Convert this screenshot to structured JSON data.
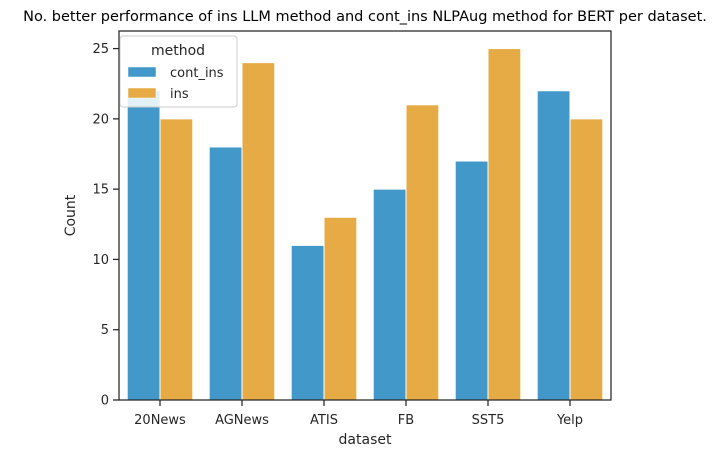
{
  "chart_data": {
    "type": "bar",
    "title": "No. better performance of ins LLM method and cont_ins NLPAug method for BERT per dataset.",
    "xlabel": "dataset",
    "ylabel": "Count",
    "categories": [
      "20News",
      "AGNews",
      "ATIS",
      "FB",
      "SST5",
      "Yelp"
    ],
    "ylim": [
      0,
      26.25
    ],
    "yticks": [
      0,
      5,
      10,
      15,
      20,
      25
    ],
    "grid": false,
    "legend": {
      "title": "method",
      "placement": "top-left"
    },
    "series": [
      {
        "name": "cont_ins",
        "color": "#4198c9",
        "values": [
          22,
          18,
          11,
          15,
          17,
          22
        ]
      },
      {
        "name": "ins",
        "color": "#e6ab45",
        "values": [
          20,
          24,
          13,
          21,
          25,
          20
        ]
      }
    ]
  }
}
